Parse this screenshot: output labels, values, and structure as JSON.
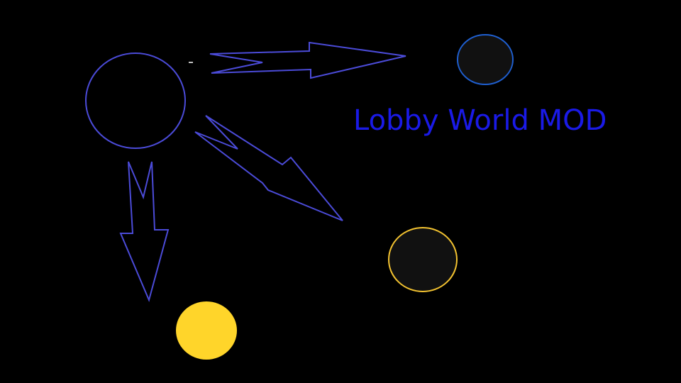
{
  "title": "Lobby World MOD"
}
